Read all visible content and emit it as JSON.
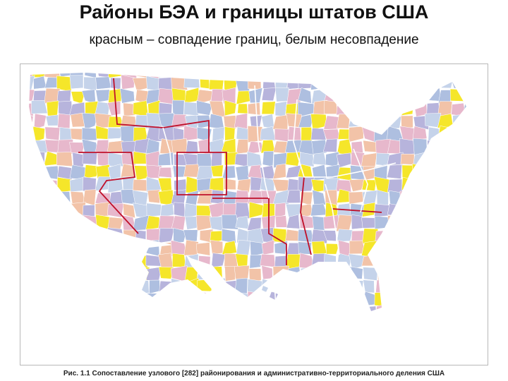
{
  "header": {
    "title": "Районы БЭА и границы штатов США",
    "subtitle": "красным – совпадение границ, белым несовпадение"
  },
  "caption": "Рис. 1.1 Сопоставление узлового [282] районирования и административно-территориального деления США"
}
